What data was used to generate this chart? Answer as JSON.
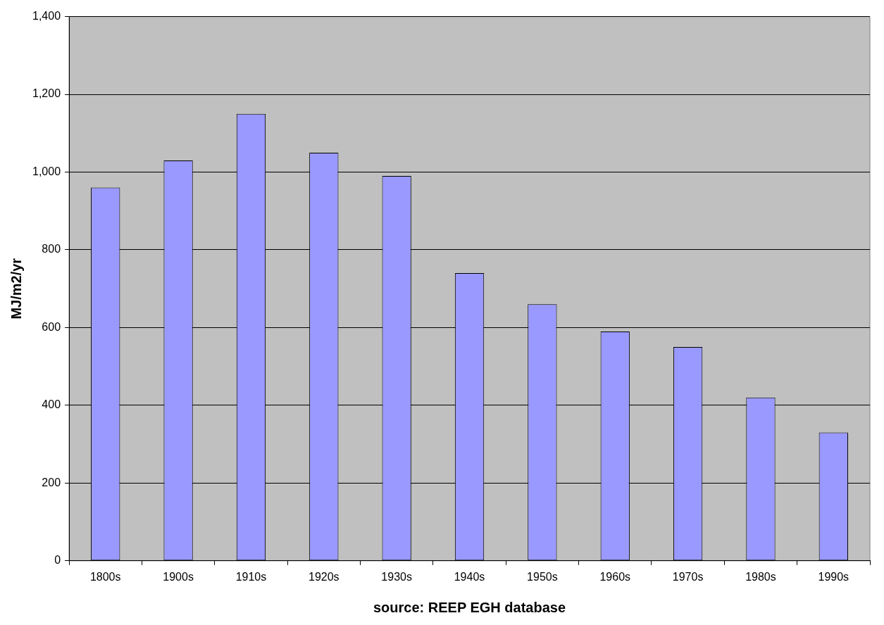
{
  "chart_data": {
    "type": "bar",
    "xlabel": "source: REEP EGH database",
    "ylabel": "MJ/m2/yr",
    "categories": [
      "1800s",
      "1900s",
      "1910s",
      "1920s",
      "1930s",
      "1940s",
      "1950s",
      "1960s",
      "1970s",
      "1980s",
      "1990s"
    ],
    "values": [
      960,
      1030,
      1150,
      1050,
      990,
      740,
      660,
      590,
      550,
      420,
      330
    ],
    "color": "#9999ff",
    "ylim": [
      0,
      1400
    ],
    "yticks": [
      0,
      200,
      400,
      600,
      800,
      {
        "value": 1000,
        "label": "1,000"
      },
      {
        "value": 1200,
        "label": "1,200"
      },
      {
        "value": 1400,
        "label": "1,400"
      }
    ],
    "grid": "y",
    "legend": false
  }
}
